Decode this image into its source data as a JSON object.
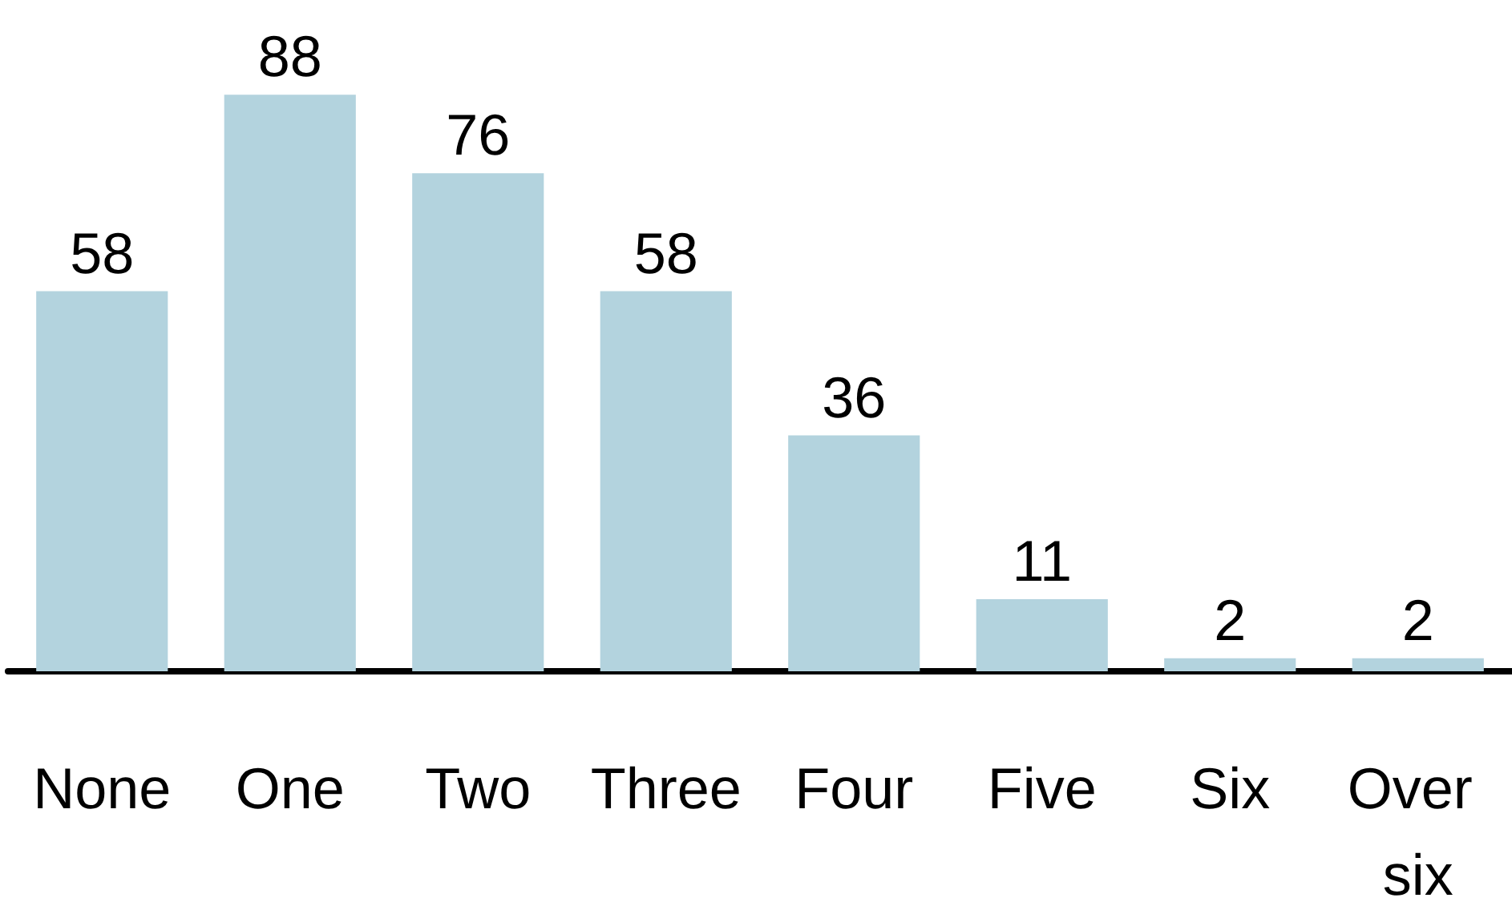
{
  "chart_data": {
    "type": "bar",
    "categories": [
      "None",
      "One",
      "Two",
      "Three",
      "Four",
      "Five",
      "Six",
      "Over six"
    ],
    "values": [
      58,
      88,
      76,
      58,
      36,
      11,
      2,
      2
    ],
    "color": "#b3d3de",
    "data_labels": true
  }
}
